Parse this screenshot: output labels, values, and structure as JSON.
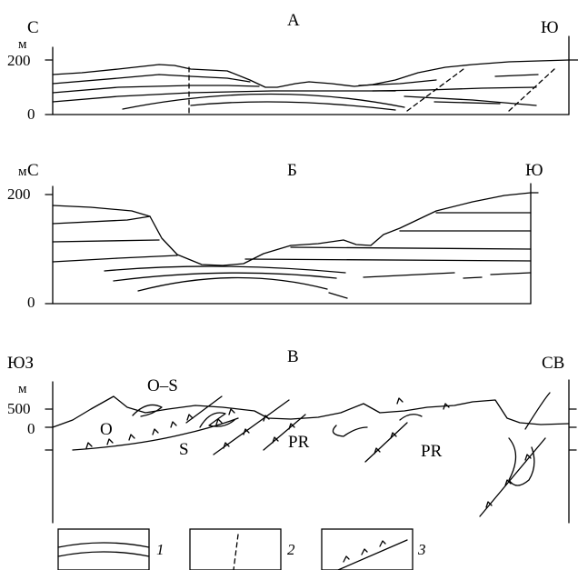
{
  "sections": [
    {
      "title": "А",
      "left_dir": "С",
      "right_dir": "Ю",
      "unit": "м",
      "ticks": [
        "200",
        "0"
      ]
    },
    {
      "title": "Б",
      "left_dir": "С",
      "right_dir": "Ю",
      "unit": "м",
      "ticks": [
        "200",
        "0"
      ]
    },
    {
      "title": "В",
      "left_dir": "ЮЗ",
      "right_dir": "СВ",
      "unit": "м",
      "ticks": [
        "500",
        "0"
      ],
      "rock_labels": [
        "O–S",
        "O",
        "S",
        "PR",
        "PR"
      ]
    }
  ],
  "legend": [
    {
      "number": "1",
      "icon": "bedding-lines"
    },
    {
      "number": "2",
      "icon": "dashed-fault"
    },
    {
      "number": "3",
      "icon": "thrust-fault"
    }
  ]
}
